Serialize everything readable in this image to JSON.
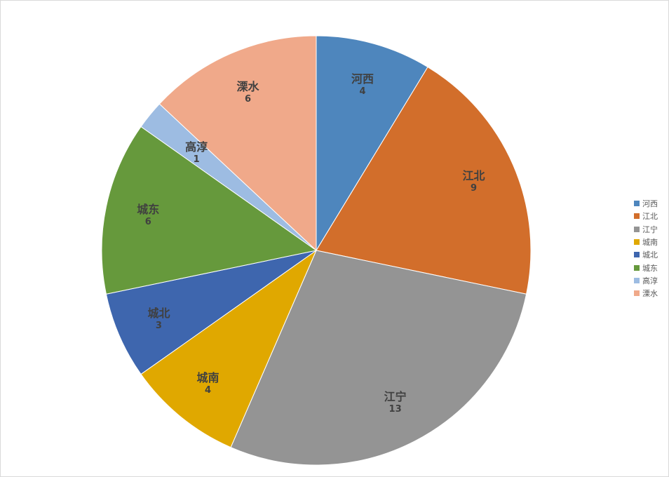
{
  "chart_data": {
    "type": "pie",
    "title": "",
    "categories": [
      "河西",
      "江北",
      "江宁",
      "城南",
      "城北",
      "城东",
      "高淳",
      "溧水"
    ],
    "values": [
      4,
      9,
      13,
      4,
      3,
      6,
      1,
      6
    ],
    "colors": [
      "#4e86bd",
      "#d26e2b",
      "#949494",
      "#e0a800",
      "#3e66ae",
      "#66993c",
      "#9dbce2",
      "#f0a98a"
    ],
    "data_labels": true,
    "legend_position": "right",
    "start_angle_deg": 0,
    "direction": "clockwise"
  },
  "legend": {
    "items": [
      {
        "label": "河西"
      },
      {
        "label": "江北"
      },
      {
        "label": "江宁"
      },
      {
        "label": "城南"
      },
      {
        "label": "城北"
      },
      {
        "label": "城东"
      },
      {
        "label": "高淳"
      },
      {
        "label": "溧水"
      }
    ]
  }
}
